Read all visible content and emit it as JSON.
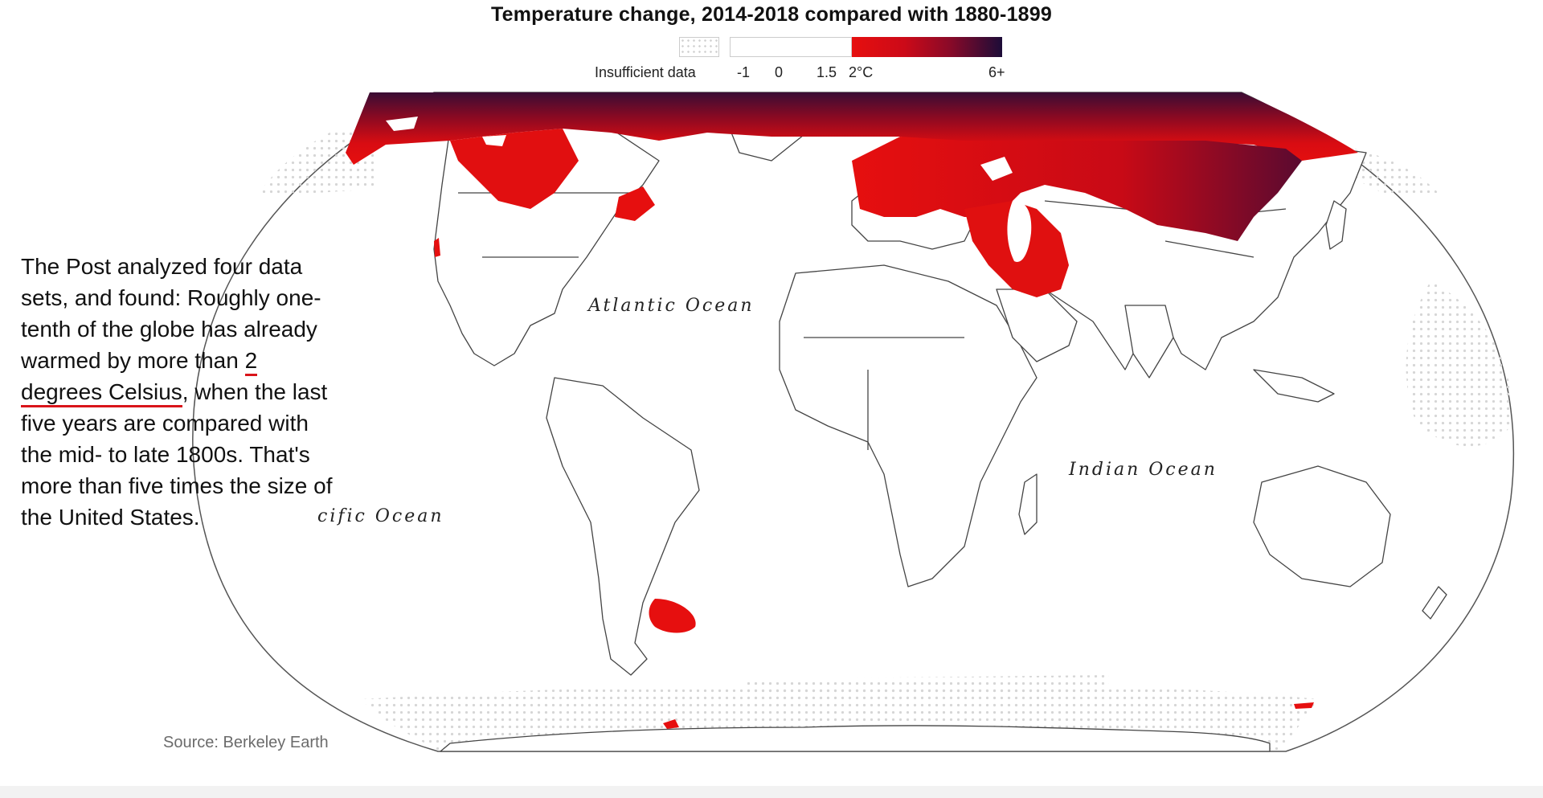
{
  "title": "Temperature change, 2014-2018 compared with 1880-1899",
  "legend": {
    "insufficient_label": "Insufficient data",
    "ticks": [
      "-1",
      "0",
      "1.5",
      "2°C",
      "6+"
    ],
    "color_no_warming": "#ffffff",
    "color_low": "#e60f0f",
    "color_high": "#1c0c38",
    "color_insufficient": "#d0d0d0"
  },
  "oceans": {
    "atlantic": "Atlantic Ocean",
    "indian": "Indian Ocean",
    "pacific_partial": "cific Ocean"
  },
  "annotation": {
    "text_before": "The Post analyzed four data sets, and found: Roughly one-tenth of the globe has already warmed by more than ",
    "highlight": "2 degrees Celsius",
    "text_after": ", when the last five years are compared with the mid- to late 1800s. That's more than five times the size of the United States."
  },
  "source": "Source: Berkeley Earth"
}
